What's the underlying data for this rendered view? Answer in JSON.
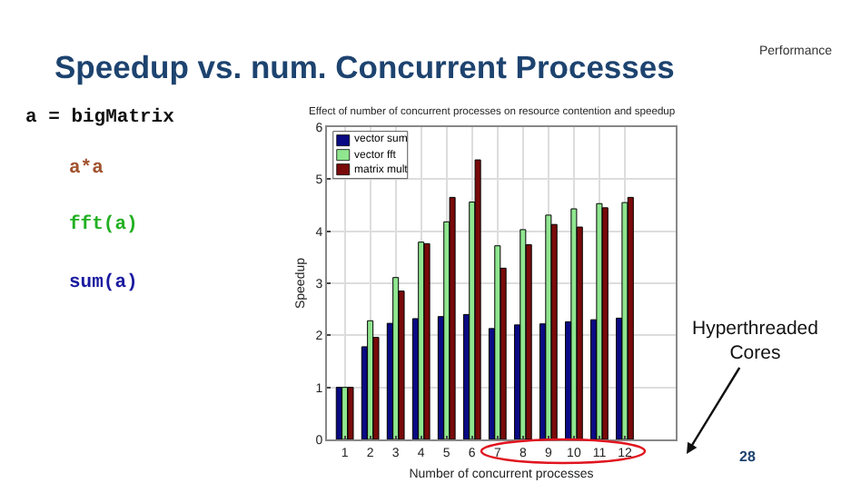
{
  "chart_data": {
    "type": "bar",
    "title": "Speedup vs. num. Concurrent Processes",
    "subtitle": "Effect of number of concurrent processes on resource contention and speedup",
    "xlabel": "Number of concurrent processes",
    "ylabel": "Speedup",
    "x": [
      1,
      2,
      3,
      4,
      5,
      6,
      7,
      8,
      9,
      10,
      11,
      12
    ],
    "series": [
      {
        "name": "vector sum",
        "color": "#0a0a84",
        "values": [
          1,
          1.78,
          2.23,
          2.32,
          2.36,
          2.4,
          2.13,
          2.2,
          2.22,
          2.26,
          2.3,
          2.33
        ]
      },
      {
        "name": "vector fft",
        "color": "#8fe68f",
        "values": [
          1,
          2.28,
          3.11,
          3.79,
          4.18,
          4.56,
          3.72,
          4.03,
          4.31,
          4.43,
          4.53,
          4.55
        ]
      },
      {
        "name": "matrix mult",
        "color": "#7a0a0a",
        "values": [
          1,
          1.96,
          2.85,
          3.76,
          4.65,
          5.37,
          3.29,
          3.74,
          4.13,
          4.08,
          4.45,
          4.65
        ]
      }
    ],
    "xlim": [
      0.3,
      14
    ],
    "xticks": [
      1,
      2,
      3,
      4,
      5,
      6,
      7,
      8,
      9,
      10,
      11,
      12
    ],
    "ylim": [
      0,
      6
    ],
    "yticks": [
      0,
      1,
      2,
      3,
      4,
      5,
      6
    ],
    "grid": true,
    "legend": "top left",
    "annotations": [
      "Performance",
      "a = bigMatrix",
      "a*a",
      "fft(a)",
      "sum(a)",
      "28",
      "Hyperthreaded Cores"
    ]
  }
}
